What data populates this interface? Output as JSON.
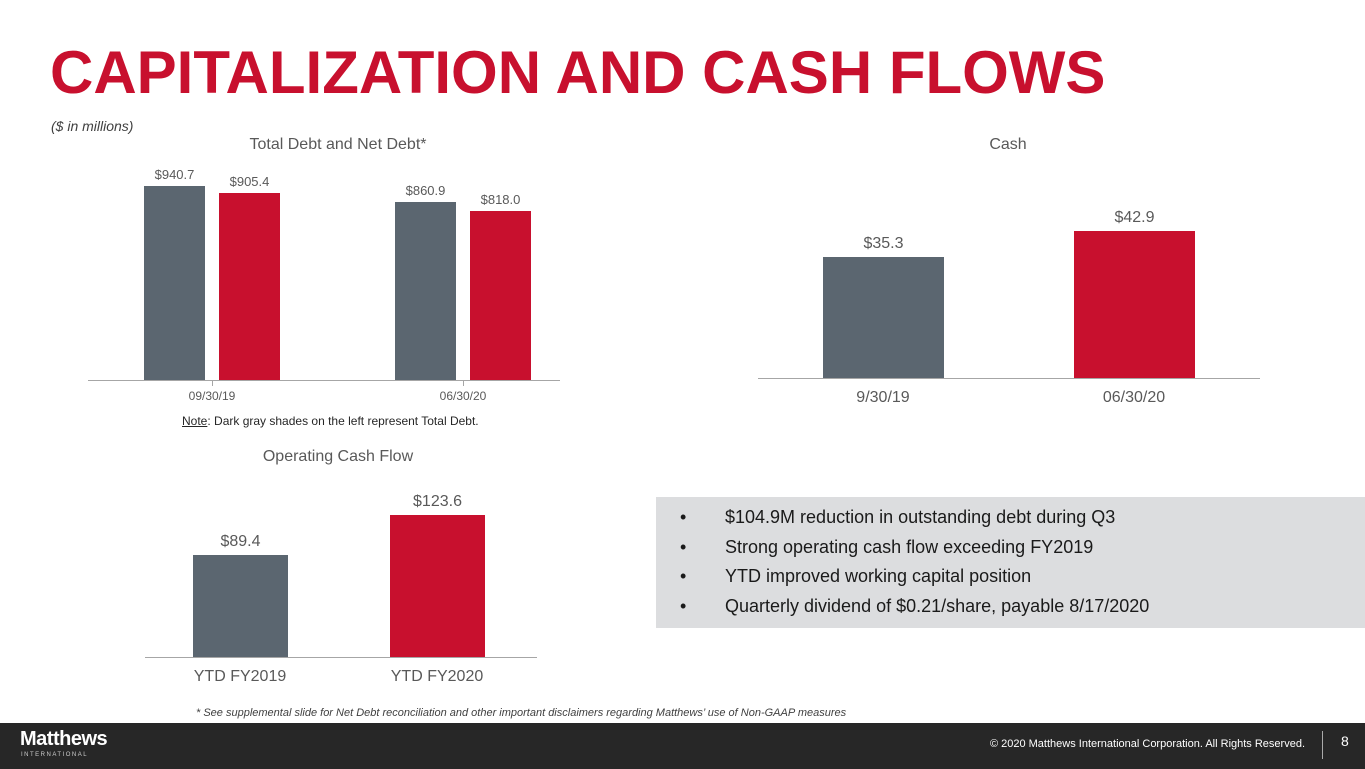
{
  "title": "CAPITALIZATION AND CASH FLOWS",
  "units": "($ in millions)",
  "colors": {
    "gray": "#5b6670",
    "red": "#c8102e"
  },
  "chart_data": [
    {
      "type": "bar",
      "title": "Total Debt and Net Debt*",
      "categories": [
        "09/30/19",
        "06/30/20"
      ],
      "series": [
        {
          "name": "Total Debt",
          "values": [
            940.7,
            860.9
          ],
          "labels": [
            "$940.7",
            "$860.9"
          ]
        },
        {
          "name": "Net Debt",
          "values": [
            905.4,
            818.0
          ],
          "labels": [
            "$905.4",
            "$818.0"
          ]
        }
      ],
      "note_prefix": "Note",
      "note": ": Dark gray shades on the left represent Total Debt."
    },
    {
      "type": "bar",
      "title": "Cash",
      "categories": [
        "9/30/19",
        "06/30/20"
      ],
      "values": [
        35.3,
        42.9
      ],
      "labels": [
        "$35.3",
        "$42.9"
      ]
    },
    {
      "type": "bar",
      "title": "Operating Cash Flow",
      "categories": [
        "YTD FY2019",
        "YTD FY2020"
      ],
      "values": [
        89.4,
        123.6
      ],
      "labels": [
        "$89.4",
        "$123.6"
      ]
    }
  ],
  "bullets": [
    "$104.9M reduction in outstanding debt during Q3",
    "Strong operating cash flow exceeding FY2019",
    "YTD improved working capital position",
    "Quarterly dividend of $0.21/share, payable 8/17/2020"
  ],
  "bullet_char": "•",
  "disclaimer": "* See supplemental slide for Net Debt reconciliation and other important disclaimers regarding Matthews’ use of Non-GAAP measures",
  "footer": {
    "logo": "Matthews",
    "logo_sub": "INTERNATIONAL",
    "copyright": "© 2020 Matthews International Corporation. All Rights Reserved.",
    "page": "8"
  }
}
